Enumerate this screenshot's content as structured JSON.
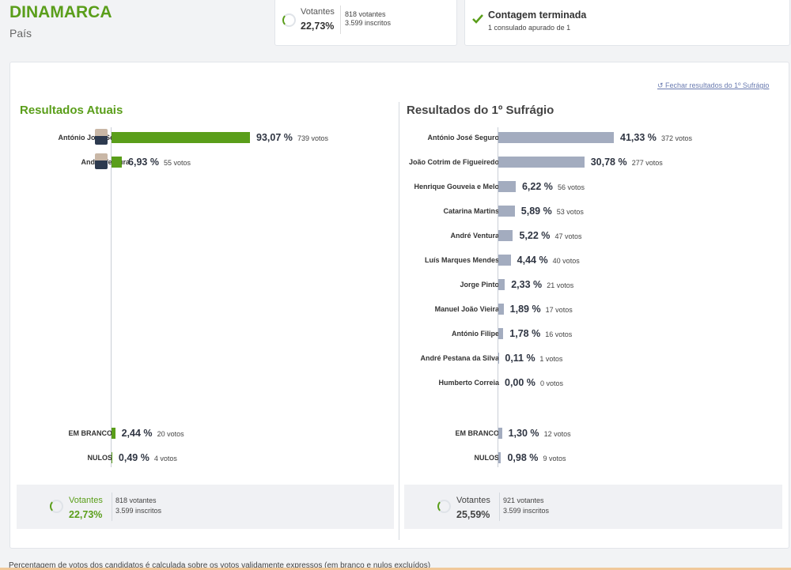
{
  "header": {
    "title": "DINAMARCA",
    "subtitle": "País"
  },
  "turnout_card": {
    "label": "Votantes",
    "pct": "22,73%",
    "votantes": "818 votantes",
    "inscritos": "3.599 inscritos"
  },
  "status_card": {
    "title": "Contagem terminada",
    "detail": "1 consulado apurado de 1"
  },
  "link": "Fechar resultados do 1º Sufrágio",
  "current": {
    "title": "Resultados Atuais",
    "color": "#5a9e1a",
    "candidates": [
      {
        "name": "António José Seguro",
        "value": 93.07,
        "value_label": "93,07 %",
        "votes": "739 votos"
      },
      {
        "name": "André Ventura",
        "value": 6.93,
        "value_label": "6,93 %",
        "votes": "55 votos"
      }
    ],
    "others": [
      {
        "name": "EM BRANCO",
        "value": 2.44,
        "value_label": "2,44 %",
        "votes": "20 votos"
      },
      {
        "name": "NULOS",
        "value": 0.49,
        "value_label": "0,49 %",
        "votes": "4 votos"
      }
    ],
    "footer": {
      "label": "Votantes",
      "pct": "22,73%",
      "votantes": "818 votantes",
      "inscritos": "3.599 inscritos"
    }
  },
  "first_round": {
    "title": "Resultados do 1º Sufrágio",
    "color": "#a3acbf",
    "candidates": [
      {
        "name": "António José Seguro",
        "value": 41.33,
        "value_label": "41,33 %",
        "votes": "372 votos"
      },
      {
        "name": "João Cotrim de Figueiredo",
        "value": 30.78,
        "value_label": "30,78 %",
        "votes": "277 votos"
      },
      {
        "name": "Henrique Gouveia e Melo",
        "value": 6.22,
        "value_label": "6,22 %",
        "votes": "56 votos"
      },
      {
        "name": "Catarina Martins",
        "value": 5.89,
        "value_label": "5,89 %",
        "votes": "53 votos"
      },
      {
        "name": "André Ventura",
        "value": 5.22,
        "value_label": "5,22 %",
        "votes": "47 votos"
      },
      {
        "name": "Luís Marques Mendes",
        "value": 4.44,
        "value_label": "4,44 %",
        "votes": "40 votos"
      },
      {
        "name": "Jorge Pinto",
        "value": 2.33,
        "value_label": "2,33 %",
        "votes": "21 votos"
      },
      {
        "name": "Manuel João Vieira",
        "value": 1.89,
        "value_label": "1,89 %",
        "votes": "17 votos"
      },
      {
        "name": "António Filipe",
        "value": 1.78,
        "value_label": "1,78 %",
        "votes": "16 votos"
      },
      {
        "name": "André Pestana da Silva",
        "value": 0.11,
        "value_label": "0,11 %",
        "votes": "1 votos"
      },
      {
        "name": "Humberto Correia",
        "value": 0.0,
        "value_label": "0,00 %",
        "votes": "0 votos"
      }
    ],
    "others": [
      {
        "name": "EM BRANCO",
        "value": 1.3,
        "value_label": "1,30 %",
        "votes": "12 votos"
      },
      {
        "name": "NULOS",
        "value": 0.98,
        "value_label": "0,98 %",
        "votes": "9 votos"
      }
    ],
    "footer": {
      "label": "Votantes",
      "pct": "25,59%",
      "votantes": "921 votantes",
      "inscritos": "3.599 inscritos"
    }
  },
  "footnote": "Percentagem de votos dos candidatos é calculada sobre os votos validamente expressos (em branco e nulos excluídos)"
}
